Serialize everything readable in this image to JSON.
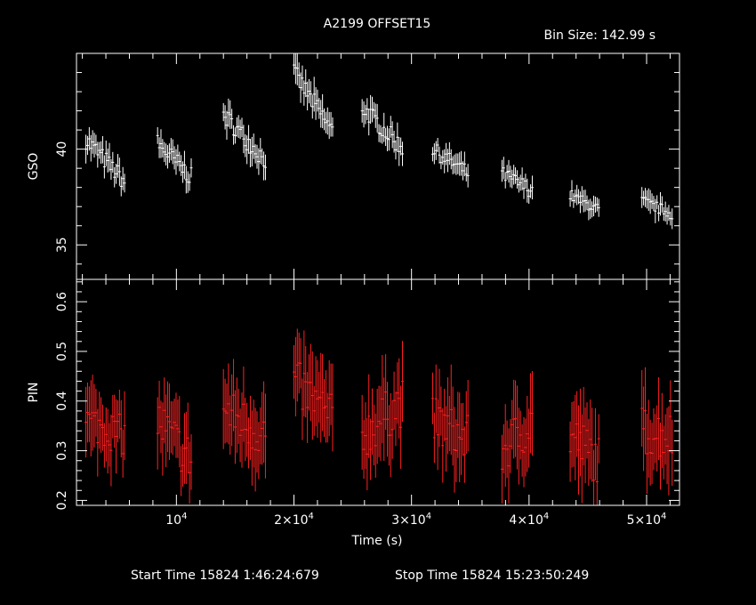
{
  "chart_data": {
    "type": "scatter",
    "title": "A2199 OFFSET15",
    "bin_size": "Bin Size: 142.99 s",
    "xlabel": "Time (s)",
    "x_tick_labels": [
      {
        "value": 10000,
        "mantissa": "",
        "base": "10",
        "exp": "4"
      },
      {
        "value": 20000,
        "mantissa": "2×",
        "base": "10",
        "exp": "4"
      },
      {
        "value": 30000,
        "mantissa": "3×",
        "base": "10",
        "exp": "4"
      },
      {
        "value": 40000,
        "mantissa": "4×",
        "base": "10",
        "exp": "4"
      },
      {
        "value": 50000,
        "mantissa": "5×",
        "base": "10",
        "exp": "4"
      }
    ],
    "xlim": [
      1500,
      52800
    ],
    "footer": {
      "start": "Start Time 15824  1:46:24:679",
      "stop": "Stop Time 15824 15:23:50:249"
    },
    "panels": [
      {
        "name": "GSO",
        "ylabel": "GSO",
        "ylim": [
          33.2,
          45
        ],
        "yticks": [
          "35",
          "40"
        ],
        "ytick_values": [
          35,
          40
        ],
        "color": "#ffffff",
        "segments": [
          {
            "x0": 2300,
            "x1": 5600,
            "y0": 40.5,
            "y1": 38.3,
            "err": 0.6,
            "noise": 0.5
          },
          {
            "x0": 8400,
            "x1": 11300,
            "y0": 40.3,
            "y1": 38.5,
            "err": 0.6,
            "noise": 0.5
          },
          {
            "x0": 14000,
            "x1": 17600,
            "y0": 41.8,
            "y1": 39.4,
            "err": 0.6,
            "noise": 0.5
          },
          {
            "x0": 20000,
            "x1": 23400,
            "y0": 44.0,
            "y1": 40.8,
            "err": 0.7,
            "noise": 0.5
          },
          {
            "x0": 25800,
            "x1": 29300,
            "y0": 42.2,
            "y1": 40.0,
            "err": 0.6,
            "noise": 0.5
          },
          {
            "x0": 31800,
            "x1": 34900,
            "y0": 40.0,
            "y1": 38.7,
            "err": 0.5,
            "noise": 0.4
          },
          {
            "x0": 37700,
            "x1": 40400,
            "y0": 38.7,
            "y1": 37.8,
            "err": 0.5,
            "noise": 0.4
          },
          {
            "x0": 43500,
            "x1": 46000,
            "y0": 37.6,
            "y1": 36.8,
            "err": 0.5,
            "noise": 0.3
          },
          {
            "x0": 49600,
            "x1": 52200,
            "y0": 37.3,
            "y1": 36.6,
            "err": 0.5,
            "noise": 0.3
          }
        ]
      },
      {
        "name": "PIN",
        "ylabel": "PIN",
        "ylim": [
          0.19,
          0.645
        ],
        "yticks": [
          "0.2",
          "0.3",
          "0.4",
          "0.5",
          "0.6"
        ],
        "ytick_values": [
          0.2,
          0.3,
          0.4,
          0.5,
          0.6
        ],
        "color": "#ff2020",
        "segments": [
          {
            "x0": 2300,
            "x1": 5600,
            "y0": 0.36,
            "y1": 0.33,
            "err": 0.06,
            "noise": 0.04
          },
          {
            "x0": 8400,
            "x1": 11300,
            "y0": 0.36,
            "y1": 0.28,
            "err": 0.06,
            "noise": 0.05
          },
          {
            "x0": 14000,
            "x1": 17600,
            "y0": 0.38,
            "y1": 0.33,
            "err": 0.07,
            "noise": 0.05
          },
          {
            "x0": 20000,
            "x1": 23400,
            "y0": 0.44,
            "y1": 0.36,
            "err": 0.07,
            "noise": 0.05
          },
          {
            "x0": 25800,
            "x1": 29300,
            "y0": 0.33,
            "y1": 0.4,
            "err": 0.07,
            "noise": 0.05
          },
          {
            "x0": 31800,
            "x1": 34900,
            "y0": 0.36,
            "y1": 0.32,
            "err": 0.07,
            "noise": 0.05
          },
          {
            "x0": 37700,
            "x1": 40400,
            "y0": 0.3,
            "y1": 0.36,
            "err": 0.07,
            "noise": 0.05
          },
          {
            "x0": 43500,
            "x1": 46000,
            "y0": 0.33,
            "y1": 0.28,
            "err": 0.07,
            "noise": 0.05
          },
          {
            "x0": 49600,
            "x1": 52200,
            "y0": 0.34,
            "y1": 0.33,
            "err": 0.07,
            "noise": 0.05
          }
        ]
      }
    ]
  }
}
